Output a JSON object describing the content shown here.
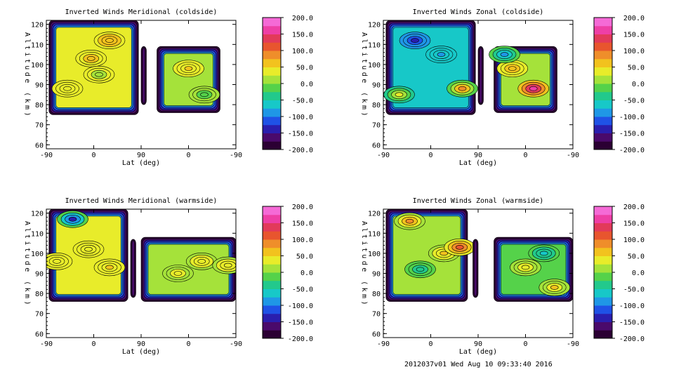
{
  "footer": "2012037v01 Wed Aug 10 09:33:40 2016",
  "colorbar": {
    "ticks": [
      "200.0",
      "150.0",
      "100.0",
      "50.0",
      "0.0",
      "-50.0",
      "-100.0",
      "-150.0",
      "-200.0"
    ],
    "colors": [
      "#2b0033",
      "#4a0a6b",
      "#2a1eae",
      "#1f52e6",
      "#1f97e6",
      "#17c8c8",
      "#22c98c",
      "#55d24a",
      "#a5e23a",
      "#e8ec2a",
      "#f2c21e",
      "#ef8e2a",
      "#e8552e",
      "#e23a5a",
      "#ee3fa6",
      "#f56ad6"
    ]
  },
  "chart_data": [
    {
      "type": "heatmap",
      "title": "Inverted Winds Meridional (coldside)",
      "xlabel": "Lat (deg)",
      "ylabel": "Altitude (km)",
      "x_ticks": [
        "-90",
        "0",
        "90",
        "0",
        "-90"
      ],
      "y_ticks": [
        "120",
        "110",
        "100",
        "90",
        "80",
        "70",
        "60"
      ],
      "ylim": [
        58,
        122
      ],
      "zlim": [
        -200,
        200
      ],
      "regions": [
        {
          "lat": [
            -85,
            85
          ],
          "alt": [
            75,
            122
          ],
          "mean": 35,
          "features": [
            {
              "lat": -5,
              "alt": 103,
              "v": 55
            },
            {
              "lat": 30,
              "alt": 112,
              "v": 70
            },
            {
              "lat": 10,
              "alt": 95,
              "v": 15
            },
            {
              "lat": -50,
              "alt": 88,
              "v": 25
            }
          ]
        },
        {
          "lat": [
            90,
            80
          ],
          "alt": [
            80,
            109
          ],
          "mean": 10,
          "features": []
        },
        {
          "lat": [
            60,
            -60
          ],
          "alt": [
            76,
            109
          ],
          "mean": 15,
          "features": [
            {
              "lat": 0,
              "alt": 98,
              "v": 60
            },
            {
              "lat": -30,
              "alt": 85,
              "v": -10
            }
          ]
        }
      ]
    },
    {
      "type": "heatmap",
      "title": "Inverted Winds Zonal (coldside)",
      "xlabel": "Lat (deg)",
      "ylabel": "Altitude (km)",
      "x_ticks": [
        "-90",
        "0",
        "90",
        "0",
        "-90"
      ],
      "y_ticks": [
        "120",
        "110",
        "100",
        "90",
        "80",
        "70",
        "60"
      ],
      "ylim": [
        58,
        122
      ],
      "zlim": [
        -200,
        200
      ],
      "regions": [
        {
          "lat": [
            -85,
            85
          ],
          "alt": [
            75,
            122
          ],
          "mean": -60,
          "features": [
            {
              "lat": -30,
              "alt": 112,
              "v": -140
            },
            {
              "lat": 20,
              "alt": 105,
              "v": -80
            },
            {
              "lat": 60,
              "alt": 88,
              "v": 90
            },
            {
              "lat": -60,
              "alt": 85,
              "v": 40
            }
          ]
        },
        {
          "lat": [
            90,
            80
          ],
          "alt": [
            80,
            109
          ],
          "mean": -30,
          "features": []
        },
        {
          "lat": [
            60,
            -60
          ],
          "alt": [
            76,
            109
          ],
          "mean": 20,
          "features": [
            {
              "lat": -15,
              "alt": 88,
              "v": 160
            },
            {
              "lat": 25,
              "alt": 98,
              "v": 70
            },
            {
              "lat": 40,
              "alt": 105,
              "v": -100
            }
          ]
        }
      ]
    },
    {
      "type": "heatmap",
      "title": "Inverted Winds Meridional (warmside)",
      "xlabel": "Lat (deg)",
      "ylabel": "Altitude (km)",
      "x_ticks": [
        "-90",
        "0",
        "90",
        "0",
        "-90"
      ],
      "y_ticks": [
        "120",
        "110",
        "100",
        "90",
        "80",
        "70",
        "60"
      ],
      "ylim": [
        58,
        122
      ],
      "zlim": [
        -200,
        200
      ],
      "regions": [
        {
          "lat": [
            -85,
            65
          ],
          "alt": [
            76,
            122
          ],
          "mean": 25,
          "features": [
            {
              "lat": -40,
              "alt": 117,
              "v": -130
            },
            {
              "lat": -10,
              "alt": 102,
              "v": 40
            },
            {
              "lat": 30,
              "alt": 93,
              "v": 55
            },
            {
              "lat": -70,
              "alt": 96,
              "v": 35
            }
          ]
        },
        {
          "lat": [
            110,
            100
          ],
          "alt": [
            78,
            107
          ],
          "mean": -20,
          "features": []
        },
        {
          "lat": [
            90,
            -90
          ],
          "alt": [
            76,
            108
          ],
          "mean": 15,
          "features": [
            {
              "lat": -25,
              "alt": 96,
              "v": 45
            },
            {
              "lat": 20,
              "alt": 90,
              "v": 30
            },
            {
              "lat": -75,
              "alt": 94,
              "v": 40
            }
          ]
        }
      ]
    },
    {
      "type": "heatmap",
      "title": "Inverted Winds Zonal (warmside)",
      "xlabel": "Lat (deg)",
      "ylabel": "Altitude (km)",
      "x_ticks": [
        "-90",
        "0",
        "90",
        "0",
        "-90"
      ],
      "y_ticks": [
        "120",
        "110",
        "100",
        "90",
        "80",
        "70",
        "60"
      ],
      "ylim": [
        58,
        122
      ],
      "zlim": [
        -200,
        200
      ],
      "regions": [
        {
          "lat": [
            -85,
            70
          ],
          "alt": [
            76,
            122
          ],
          "mean": 0,
          "features": [
            {
              "lat": -40,
              "alt": 116,
              "v": 90
            },
            {
              "lat": 25,
              "alt": 100,
              "v": 60
            },
            {
              "lat": 55,
              "alt": 103,
              "v": 110
            },
            {
              "lat": -20,
              "alt": 92,
              "v": -40
            }
          ]
        },
        {
          "lat": [
            100,
            90
          ],
          "alt": [
            78,
            107
          ],
          "mean": -40,
          "features": []
        },
        {
          "lat": [
            60,
            -90
          ],
          "alt": [
            76,
            108
          ],
          "mean": -10,
          "features": [
            {
              "lat": 0,
              "alt": 93,
              "v": 45
            },
            {
              "lat": -55,
              "alt": 83,
              "v": 50
            },
            {
              "lat": -35,
              "alt": 100,
              "v": -60
            }
          ]
        }
      ]
    }
  ]
}
